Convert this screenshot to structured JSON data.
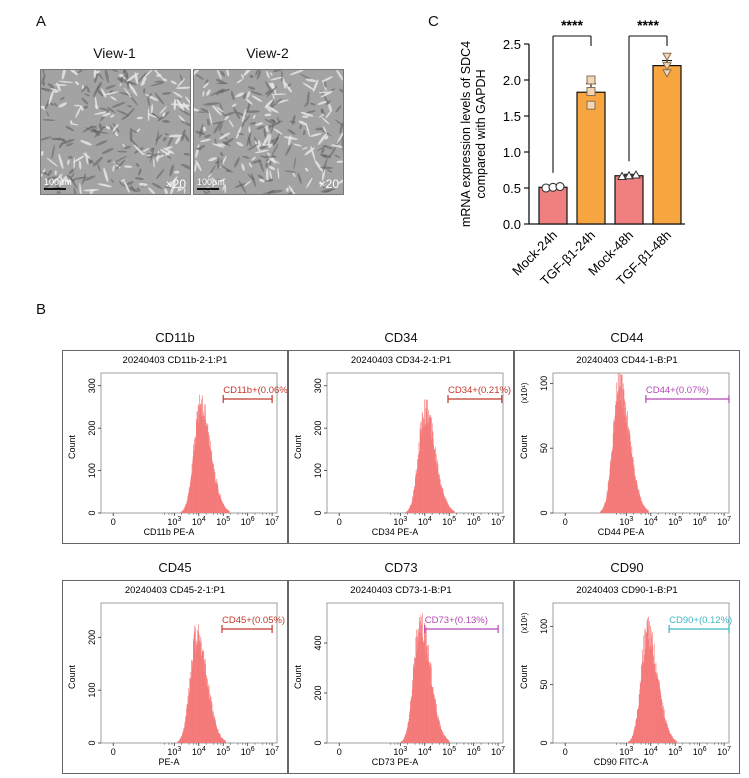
{
  "panels": {
    "a": "A",
    "b": "B",
    "c": "C"
  },
  "microscopy": [
    {
      "title": "View-1",
      "scale": "100μm",
      "mag": "×20"
    },
    {
      "title": "View-2",
      "scale": "100μm",
      "mag": "×20"
    }
  ],
  "colors": {
    "mock": "#f08080",
    "tgf": "#f7a540",
    "hist": "#f47a7a"
  },
  "chart_data": [
    {
      "type": "bar",
      "panel": "C",
      "ylabel": "mRNA expression levels of SDC4 compared with GAPDH",
      "ylim": [
        0,
        2.5
      ],
      "yticks": [
        "0.0",
        "0.5",
        "1.0",
        "1.5",
        "2.0",
        "2.5"
      ],
      "categories": [
        "Mock-24h",
        "TGF-β1-24h",
        "Mock-48h",
        "TGF-β1-48h"
      ],
      "values": [
        0.51,
        1.83,
        0.67,
        2.2
      ],
      "errors": [
        0.02,
        0.12,
        0.02,
        0.07
      ],
      "points": [
        [
          0.5,
          0.51,
          0.52
        ],
        [
          1.65,
          1.84,
          2.0
        ],
        [
          0.66,
          0.67,
          0.68
        ],
        [
          2.1,
          2.2,
          2.33
        ]
      ],
      "significance": [
        {
          "from": 0,
          "to": 1,
          "label": "****"
        },
        {
          "from": 2,
          "to": 3,
          "label": "****"
        }
      ]
    },
    {
      "type": "histogram",
      "panel": "B",
      "marker": "CD11b",
      "title": "20240403 CD11b-2-1:P1",
      "xlabel": "CD11b PE-A",
      "ylabel": "Count",
      "yticks": [
        "0",
        "100",
        "200",
        "300"
      ],
      "ymax": 330,
      "yexp": "",
      "gate": "CD11b+(0.06%)",
      "gate_color": "#c0392b",
      "gate_range": [
        5.0,
        7.0
      ],
      "peak": {
        "x": 4.05,
        "y": 255
      }
    },
    {
      "type": "histogram",
      "panel": "B",
      "marker": "CD34",
      "title": "20240403 CD34-2-1:P1",
      "xlabel": "CD34 PE-A",
      "ylabel": "Count",
      "yticks": [
        "0",
        "100",
        "200",
        "300"
      ],
      "ymax": 330,
      "yexp": "",
      "gate": "CD34+(0.21%)",
      "gate_color": "#c0392b",
      "gate_range": [
        4.95,
        7.15
      ],
      "peak": {
        "x": 4.0,
        "y": 242
      }
    },
    {
      "type": "histogram",
      "panel": "B",
      "marker": "CD44",
      "title": "20240403 CD44-1-B:P1",
      "xlabel": "CD44 PE-A",
      "ylabel": "Count",
      "yticks": [
        "0",
        "50",
        "100"
      ],
      "ymax": 108,
      "yexp": "(x10¹)",
      "gate": "CD44+(0.07%)",
      "gate_color": "#b548b5",
      "gate_range": [
        3.8,
        7.2
      ],
      "peak": {
        "x": 2.7,
        "y": 97
      }
    },
    {
      "type": "histogram",
      "panel": "B",
      "marker": "CD45",
      "title": "20240403 CD45-2-1:P1",
      "xlabel": "PE-A",
      "ylabel": "Count",
      "yticks": [
        "0",
        "100",
        "200"
      ],
      "ymax": 265,
      "yexp": "",
      "gate": "CD45+(0.05%)",
      "gate_color": "#c0392b",
      "gate_range": [
        4.95,
        7.0
      ],
      "peak": {
        "x": 3.9,
        "y": 205
      }
    },
    {
      "type": "histogram",
      "panel": "B",
      "marker": "CD73",
      "title": "20240403 CD73-1-B:P1",
      "xlabel": "CD73 PE-A",
      "ylabel": "Count",
      "yticks": [
        "0",
        "200",
        "400"
      ],
      "ymax": 560,
      "yexp": "",
      "gate": "CD73+(0.13%)",
      "gate_color": "#b548b5",
      "gate_range": [
        4.0,
        7.0
      ],
      "peak": {
        "x": 3.8,
        "y": 480
      }
    },
    {
      "type": "histogram",
      "panel": "B",
      "marker": "CD90",
      "title": "20240403 CD90-1-B:P1",
      "xlabel": "CD90 FITC-A",
      "ylabel": "Count",
      "yticks": [
        "0",
        "50",
        "100"
      ],
      "ymax": 120,
      "yexp": "(x10¹)",
      "gate": "CD90+(0.12%)",
      "gate_color": "#3fb6c7",
      "gate_range": [
        4.75,
        7.2
      ],
      "peak": {
        "x": 3.85,
        "y": 95
      }
    }
  ]
}
